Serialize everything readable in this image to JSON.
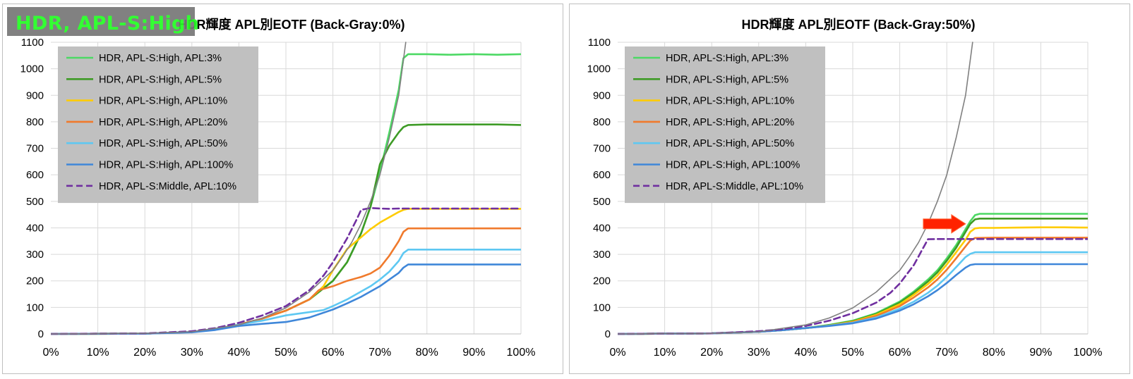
{
  "overlay_label": "HDR, APL-S:High",
  "chart_data": [
    {
      "type": "line",
      "title": "HDR輝度 APL別EOTF (Back-Gray:0%)",
      "xlabel": "",
      "ylabel": "",
      "xlim": [
        0,
        100
      ],
      "ylim": [
        0,
        1100
      ],
      "x_ticks": [
        "0%",
        "10%",
        "20%",
        "30%",
        "40%",
        "50%",
        "60%",
        "70%",
        "80%",
        "90%",
        "100%"
      ],
      "y_ticks": [
        "0",
        "100",
        "200",
        "300",
        "400",
        "500",
        "600",
        "700",
        "800",
        "900",
        "1000",
        "1100"
      ],
      "grid": true,
      "legend_position": "top-left",
      "series": [
        {
          "name": "HDR, APL-S:High, APL:3%",
          "color": "#4cd964",
          "dash": false,
          "x": [
            0,
            20,
            30,
            35,
            40,
            45,
            50,
            55,
            60,
            63,
            66,
            68,
            70,
            72,
            74,
            75,
            76,
            80,
            85,
            90,
            95,
            100
          ],
          "y": [
            0,
            1,
            8,
            18,
            35,
            58,
            88,
            130,
            200,
            270,
            380,
            480,
            610,
            760,
            920,
            1040,
            1055,
            1055,
            1053,
            1055,
            1053,
            1055
          ]
        },
        {
          "name": "HDR, APL-S:High, APL:5%",
          "color": "#3e9b26",
          "dash": false,
          "x": [
            0,
            20,
            30,
            35,
            40,
            45,
            50,
            55,
            60,
            63,
            66,
            68,
            70,
            72,
            74,
            75,
            76,
            80,
            85,
            90,
            95,
            100
          ],
          "y": [
            0,
            1,
            8,
            18,
            35,
            58,
            88,
            130,
            200,
            270,
            380,
            480,
            640,
            710,
            760,
            780,
            788,
            790,
            790,
            790,
            790,
            788
          ]
        },
        {
          "name": "HDR, APL-S:High, APL:10%",
          "color": "#ffcc00",
          "dash": false,
          "x": [
            0,
            20,
            30,
            35,
            40,
            45,
            50,
            55,
            58,
            60,
            63,
            66,
            68,
            70,
            72,
            74,
            75,
            76,
            80,
            85,
            90,
            95,
            100
          ],
          "y": [
            0,
            1,
            8,
            18,
            35,
            58,
            88,
            130,
            180,
            240,
            320,
            365,
            395,
            420,
            440,
            460,
            468,
            472,
            472,
            472,
            472,
            472,
            472
          ]
        },
        {
          "name": "HDR, APL-S:High, APL:20%",
          "color": "#f07a2c",
          "dash": false,
          "x": [
            0,
            20,
            30,
            35,
            40,
            45,
            50,
            55,
            57,
            60,
            63,
            66,
            68,
            70,
            72,
            74,
            75,
            76,
            80,
            85,
            90,
            95,
            100
          ],
          "y": [
            0,
            1,
            8,
            18,
            35,
            58,
            88,
            130,
            165,
            180,
            200,
            215,
            228,
            250,
            295,
            350,
            385,
            398,
            398,
            398,
            398,
            398,
            398
          ]
        },
        {
          "name": "HDR, APL-S:High, APL:50%",
          "color": "#5ec8f2",
          "dash": false,
          "x": [
            0,
            20,
            30,
            35,
            40,
            45,
            50,
            55,
            58,
            60,
            63,
            66,
            68,
            70,
            72,
            74,
            75,
            76,
            80,
            85,
            90,
            95,
            100
          ],
          "y": [
            0,
            1,
            8,
            18,
            35,
            50,
            70,
            82,
            90,
            105,
            130,
            160,
            180,
            205,
            235,
            275,
            305,
            318,
            318,
            318,
            318,
            318,
            318
          ]
        },
        {
          "name": "HDR, APL-S:High, APL:100%",
          "color": "#3f87d9",
          "dash": false,
          "x": [
            0,
            20,
            30,
            35,
            40,
            45,
            50,
            55,
            60,
            63,
            66,
            68,
            70,
            72,
            74,
            75,
            76,
            80,
            85,
            90,
            95,
            100
          ],
          "y": [
            0,
            1,
            6,
            15,
            30,
            38,
            45,
            62,
            92,
            115,
            140,
            160,
            180,
            205,
            230,
            250,
            262,
            262,
            262,
            262,
            262,
            262
          ]
        },
        {
          "name": "HDR, APL-S:Middle, APL:10%",
          "color": "#7030a0",
          "dash": true,
          "x": [
            0,
            20,
            30,
            35,
            40,
            45,
            50,
            55,
            58,
            60,
            63,
            65,
            66,
            68,
            70,
            72,
            74,
            76,
            80,
            85,
            90,
            95,
            100
          ],
          "y": [
            0,
            2,
            10,
            22,
            42,
            70,
            105,
            165,
            220,
            270,
            360,
            430,
            468,
            475,
            473,
            472,
            473,
            473,
            473,
            473,
            473,
            473,
            473
          ]
        },
        {
          "name": "",
          "color": "#808080",
          "dash": false,
          "thin": true,
          "x": [
            0,
            20,
            30,
            40,
            45,
            50,
            55,
            60,
            62,
            64,
            66,
            68,
            70,
            72,
            74,
            75.5
          ],
          "y": [
            0,
            2,
            8,
            34,
            60,
            98,
            158,
            240,
            290,
            345,
            415,
            500,
            600,
            740,
            900,
            1100
          ]
        }
      ]
    },
    {
      "type": "line",
      "title": "HDR輝度 APL別EOTF (Back-Gray:50%)",
      "xlabel": "",
      "ylabel": "",
      "xlim": [
        0,
        100
      ],
      "ylim": [
        0,
        1100
      ],
      "x_ticks": [
        "0%",
        "10%",
        "20%",
        "30%",
        "40%",
        "50%",
        "60%",
        "70%",
        "80%",
        "90%",
        "100%"
      ],
      "y_ticks": [
        "0",
        "100",
        "200",
        "300",
        "400",
        "500",
        "600",
        "700",
        "800",
        "900",
        "1000",
        "1100"
      ],
      "grid": true,
      "legend_position": "top-left",
      "series": [
        {
          "name": "HDR, APL-S:High, APL:3%",
          "color": "#4cd964",
          "dash": false,
          "x": [
            0,
            20,
            30,
            35,
            40,
            45,
            50,
            55,
            60,
            63,
            66,
            68,
            70,
            72,
            74,
            75,
            76,
            77,
            80,
            85,
            90,
            95,
            100
          ],
          "y": [
            0,
            2,
            8,
            14,
            22,
            34,
            50,
            78,
            122,
            160,
            205,
            240,
            285,
            335,
            395,
            425,
            448,
            453,
            453,
            453,
            453,
            453,
            453
          ]
        },
        {
          "name": "HDR, APL-S:High, APL:5%",
          "color": "#3e9b26",
          "dash": false,
          "x": [
            0,
            20,
            30,
            35,
            40,
            45,
            50,
            55,
            60,
            63,
            66,
            68,
            70,
            72,
            74,
            75,
            76,
            77,
            80,
            85,
            90,
            95,
            100
          ],
          "y": [
            0,
            2,
            8,
            14,
            22,
            33,
            48,
            75,
            118,
            155,
            198,
            232,
            276,
            325,
            385,
            415,
            432,
            435,
            435,
            435,
            435,
            435,
            435
          ]
        },
        {
          "name": "HDR, APL-S:High, APL:10%",
          "color": "#ffcc00",
          "dash": false,
          "x": [
            0,
            20,
            30,
            35,
            40,
            45,
            50,
            55,
            60,
            63,
            66,
            68,
            70,
            72,
            74,
            75,
            76,
            77,
            80,
            85,
            90,
            95,
            100
          ],
          "y": [
            0,
            2,
            8,
            14,
            22,
            32,
            46,
            72,
            112,
            148,
            188,
            220,
            262,
            308,
            355,
            385,
            398,
            400,
            400,
            401,
            402,
            402,
            401
          ]
        },
        {
          "name": "HDR, APL-S:High, APL:20%",
          "color": "#f07a2c",
          "dash": false,
          "x": [
            0,
            20,
            30,
            35,
            40,
            45,
            50,
            55,
            60,
            63,
            66,
            68,
            70,
            72,
            74,
            75,
            76,
            80,
            85,
            90,
            95,
            100
          ],
          "y": [
            0,
            2,
            8,
            14,
            22,
            31,
            44,
            68,
            105,
            138,
            175,
            205,
            242,
            285,
            330,
            352,
            362,
            363,
            363,
            363,
            363,
            363
          ]
        },
        {
          "name": "HDR, APL-S:High, APL:50%",
          "color": "#5ec8f2",
          "dash": false,
          "x": [
            0,
            20,
            30,
            35,
            40,
            45,
            50,
            55,
            60,
            63,
            66,
            68,
            70,
            72,
            74,
            75,
            76,
            80,
            85,
            90,
            95,
            100
          ],
          "y": [
            0,
            2,
            8,
            14,
            22,
            31,
            42,
            62,
            95,
            122,
            155,
            182,
            215,
            252,
            290,
            302,
            308,
            308,
            308,
            308,
            308,
            308
          ]
        },
        {
          "name": "HDR, APL-S:High, APL:100%",
          "color": "#3f87d9",
          "dash": false,
          "x": [
            0,
            20,
            30,
            35,
            40,
            45,
            50,
            55,
            60,
            63,
            66,
            68,
            70,
            72,
            74,
            75,
            76,
            80,
            85,
            90,
            95,
            100
          ],
          "y": [
            0,
            2,
            8,
            14,
            22,
            30,
            40,
            58,
            88,
            112,
            142,
            165,
            192,
            222,
            250,
            260,
            263,
            263,
            263,
            263,
            263,
            263
          ]
        },
        {
          "name": "HDR, APL-S:Middle, APL:10%",
          "color": "#7030a0",
          "dash": true,
          "x": [
            0,
            20,
            30,
            35,
            40,
            45,
            50,
            55,
            58,
            60,
            63,
            65,
            66,
            68,
            70,
            75,
            80,
            85,
            90,
            95,
            100
          ],
          "y": [
            0,
            2,
            10,
            18,
            30,
            50,
            78,
            118,
            155,
            190,
            260,
            325,
            357,
            358,
            358,
            358,
            358,
            358,
            358,
            358,
            358
          ]
        },
        {
          "name": "",
          "color": "#808080",
          "dash": false,
          "thin": true,
          "x": [
            0,
            20,
            30,
            40,
            45,
            50,
            55,
            60,
            62,
            64,
            66,
            68,
            70,
            72,
            74,
            75.5
          ],
          "y": [
            0,
            2,
            8,
            34,
            60,
            98,
            158,
            240,
            290,
            345,
            415,
            500,
            600,
            740,
            900,
            1100
          ]
        }
      ],
      "annotations": [
        {
          "type": "arrow",
          "color": "#ff2200",
          "from": [
            65,
            415
          ],
          "to": [
            74,
            415
          ]
        }
      ]
    }
  ]
}
